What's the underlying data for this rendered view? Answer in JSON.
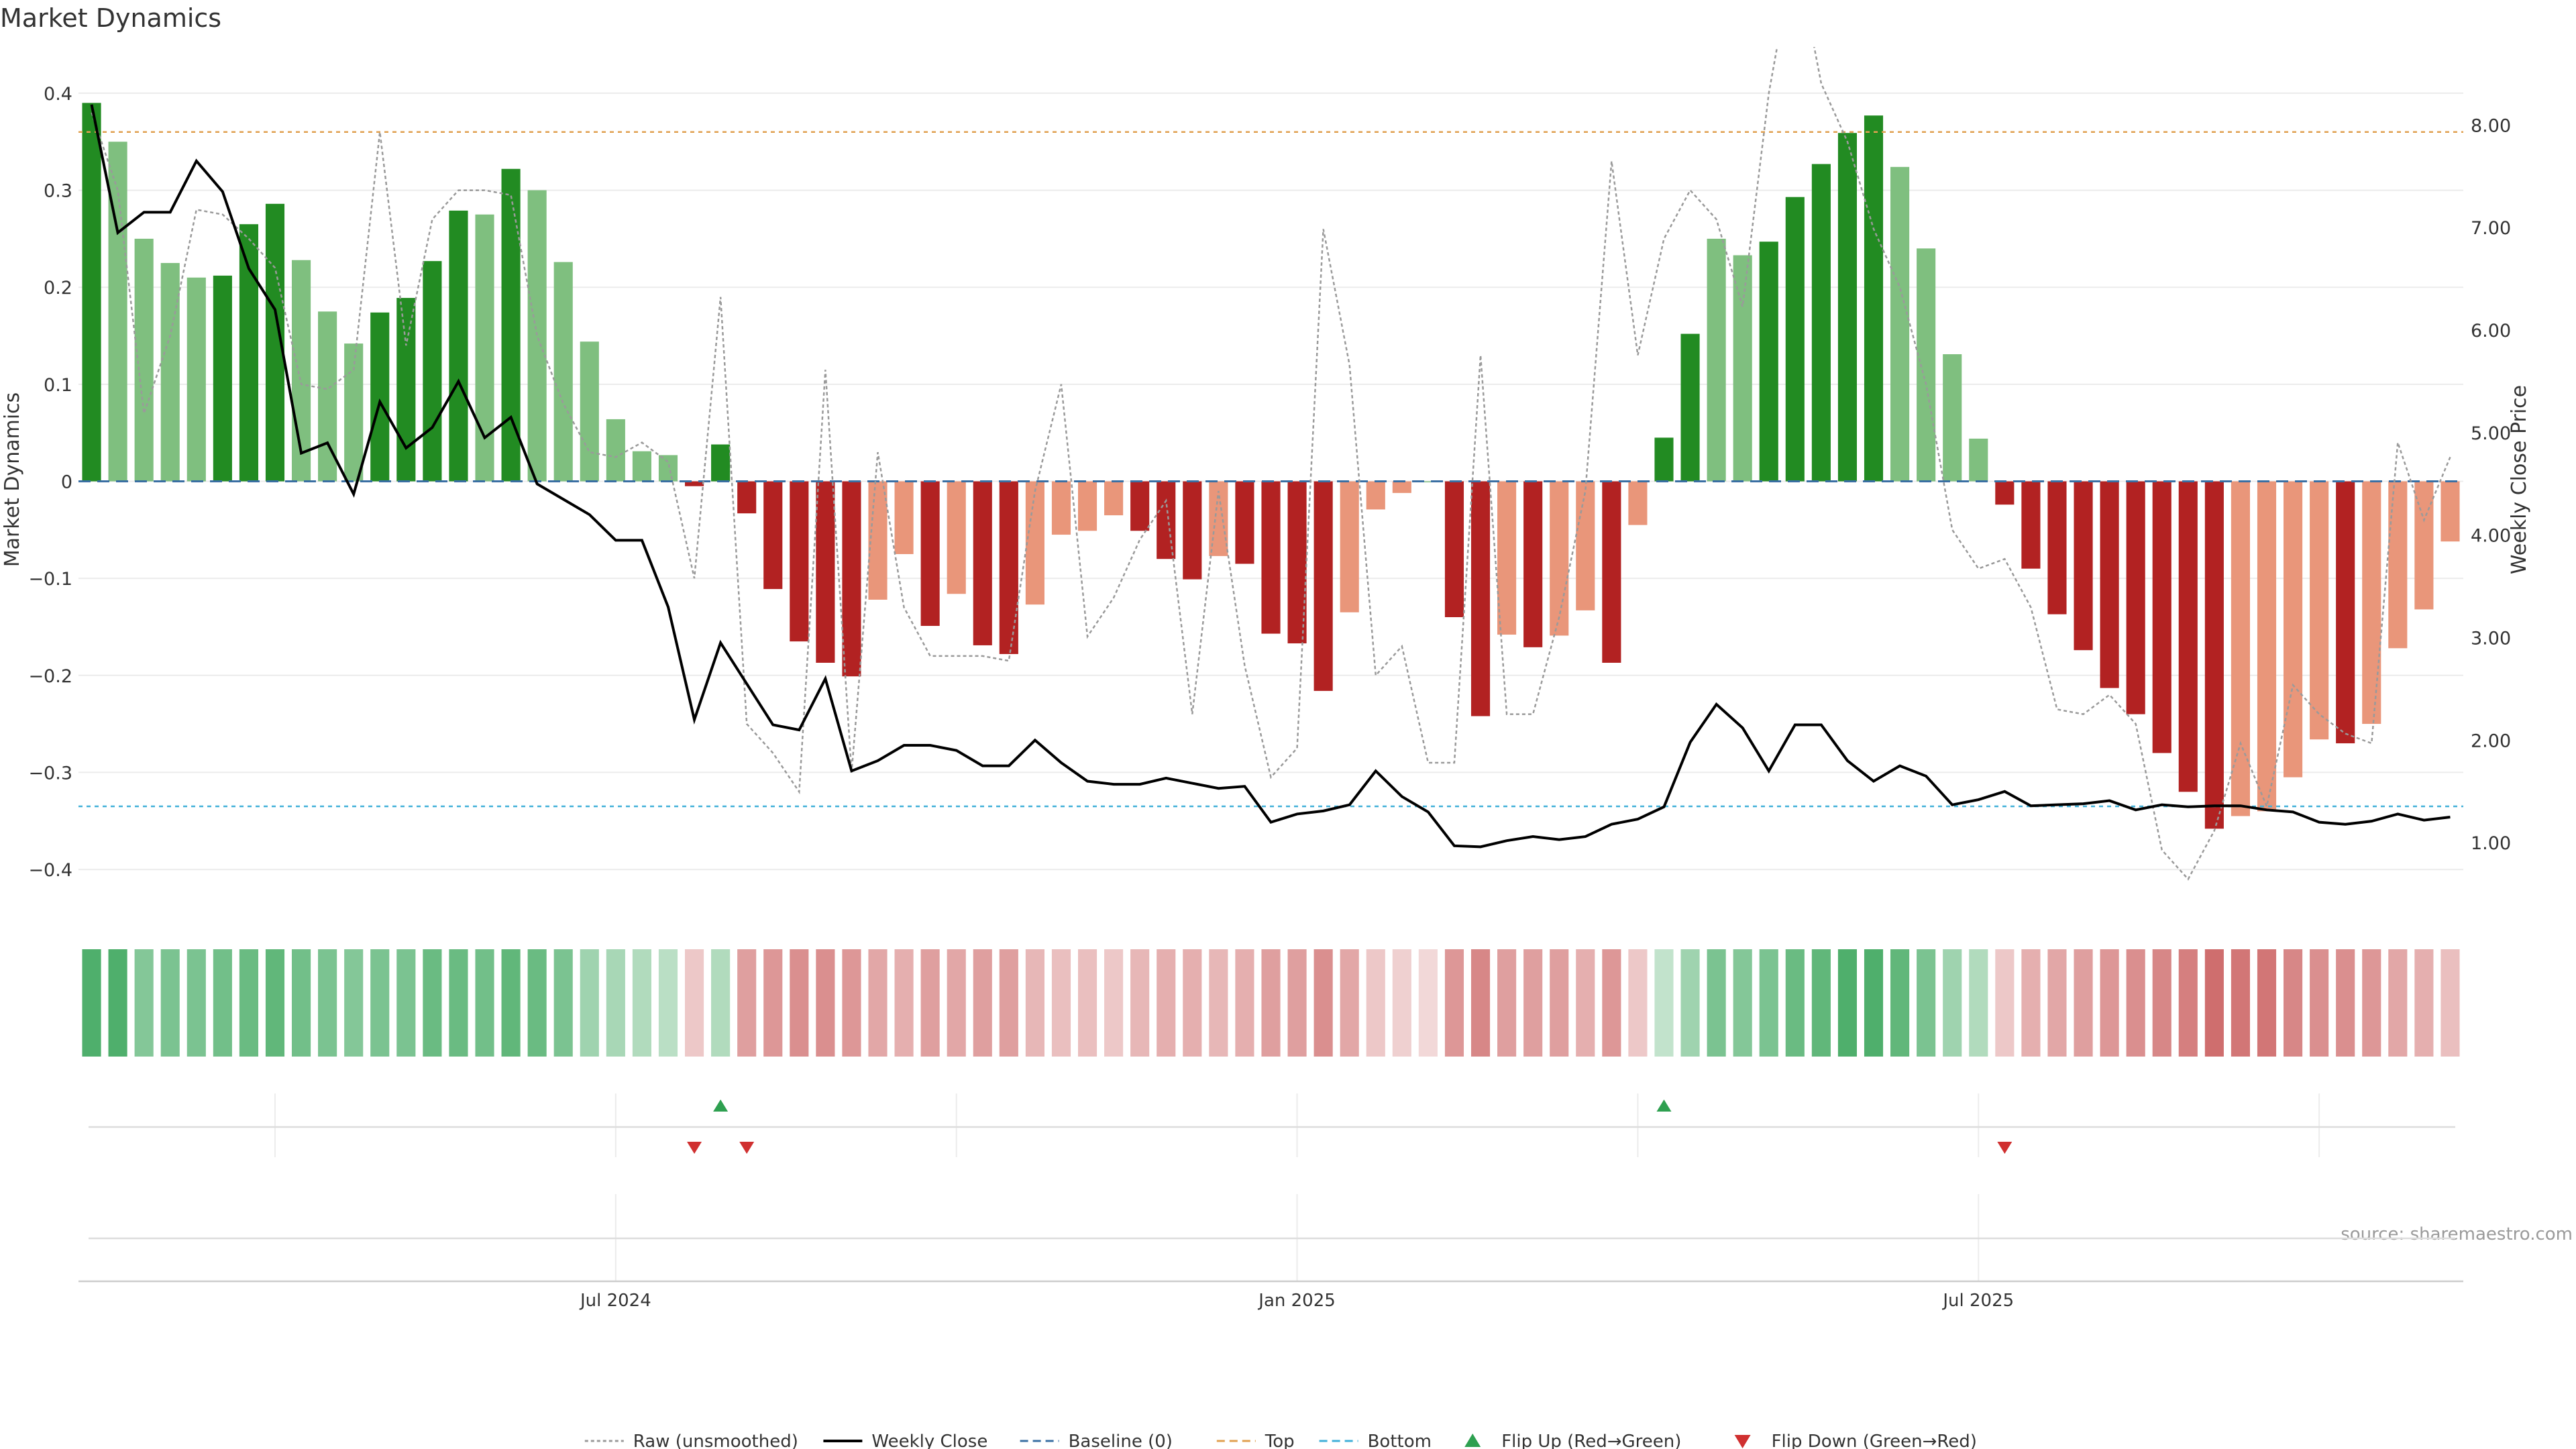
{
  "chart_data": {
    "type": "bar",
    "title": "Market Dynamics",
    "ylabel": "Market Dynamics",
    "y2label": "Weekly Close Price",
    "ylim": [
      -0.42,
      0.42
    ],
    "y2lim": [
      0.55,
      8.5
    ],
    "yticks": [
      0.4,
      0.3,
      0.2,
      0.1,
      0,
      -0.1,
      -0.2,
      -0.3,
      -0.4
    ],
    "yticks_labels": [
      "0.4",
      "0.3",
      "0.2",
      "0.1",
      "0",
      "−0.1",
      "−0.2",
      "−0.3",
      "−0.4"
    ],
    "y2ticks": [
      8.0,
      7.0,
      6.0,
      5.0,
      4.0,
      3.0,
      2.0,
      1.0
    ],
    "y2ticks_labels": [
      "8.00",
      "7.00",
      "6.00",
      "5.00",
      "4.00",
      "3.00",
      "2.00",
      "1.00"
    ],
    "x_tick_labels": [
      {
        "week": 20.5,
        "label": "Jul 2024"
      },
      {
        "week": 46.5,
        "label": "Jan 2025"
      },
      {
        "week": 72.5,
        "label": "Jul 2025"
      }
    ],
    "x_grid_weeks": [
      7.5,
      20.5,
      33.5,
      46.5,
      59.5,
      72.5,
      85.5
    ],
    "top_line": 0.36,
    "bottom_line": -0.335,
    "baseline": 0,
    "series": [
      {
        "name": "Market Dynamics (smoothed)",
        "values": [
          0.39,
          0.35,
          0.25,
          0.225,
          0.21,
          0.212,
          0.265,
          0.286,
          0.228,
          0.175,
          0.142,
          0.174,
          0.189,
          0.227,
          0.279,
          0.275,
          0.322,
          0.3,
          0.226,
          0.144,
          0.064,
          0.031,
          0.027,
          -0.005,
          0.038,
          -0.033,
          -0.111,
          -0.165,
          -0.187,
          -0.201,
          -0.122,
          -0.075,
          -0.149,
          -0.116,
          -0.169,
          -0.178,
          -0.127,
          -0.055,
          -0.051,
          -0.035,
          -0.051,
          -0.08,
          -0.101,
          -0.077,
          -0.085,
          -0.157,
          -0.167,
          -0.216,
          -0.135,
          -0.029,
          -0.012,
          0,
          -0.14,
          -0.242,
          -0.158,
          -0.171,
          -0.159,
          -0.133,
          -0.187,
          -0.045,
          0.045,
          0.152,
          0.25,
          0.233,
          0.247,
          0.293,
          0.327,
          0.359,
          0.377,
          0.324,
          0.24,
          0.131,
          0.044,
          -0.024,
          -0.09,
          -0.137,
          -0.174,
          -0.213,
          -0.24,
          -0.28,
          -0.32,
          -0.358,
          -0.345,
          -0.34,
          -0.305,
          -0.266,
          -0.27,
          -0.25,
          -0.172,
          -0.132,
          -0.062
        ]
      },
      {
        "name": "Strength",
        "values": [
          1,
          0,
          0,
          0,
          0,
          1,
          1,
          1,
          0,
          0,
          0,
          1,
          1,
          1,
          1,
          0,
          1,
          0,
          0,
          0,
          0,
          0,
          0,
          1,
          1,
          1,
          1,
          1,
          1,
          1,
          0,
          0,
          1,
          0,
          1,
          1,
          0,
          0,
          0,
          0,
          1,
          1,
          1,
          0,
          1,
          1,
          1,
          1,
          0,
          0,
          0,
          0,
          1,
          1,
          0,
          1,
          0,
          0,
          1,
          0,
          1,
          1,
          0,
          0,
          1,
          1,
          1,
          1,
          1,
          0,
          0,
          0,
          0,
          1,
          1,
          1,
          1,
          1,
          1,
          1,
          1,
          1,
          0,
          0,
          0,
          0,
          1,
          0,
          0,
          0,
          0
        ]
      },
      {
        "name": "Raw (unsmoothed)",
        "values": [
          0.38,
          0.3,
          0.07,
          0.15,
          0.28,
          0.275,
          0.25,
          0.22,
          0.1,
          0.095,
          0.115,
          0.36,
          0.14,
          0.27,
          0.3,
          0.3,
          0.295,
          0.15,
          0.08,
          0.03,
          0.025,
          0.04,
          0.02,
          -0.1,
          0.19,
          -0.25,
          -0.28,
          -0.32,
          0.115,
          -0.3,
          0.03,
          -0.13,
          -0.18,
          -0.18,
          -0.18,
          -0.185,
          -0.01,
          0.1,
          -0.16,
          -0.12,
          -0.06,
          -0.02,
          -0.24,
          -0.01,
          -0.19,
          -0.305,
          -0.275,
          0.26,
          0.12,
          -0.2,
          -0.17,
          -0.29,
          -0.29,
          0.13,
          -0.24,
          -0.24,
          -0.14,
          -0.01,
          0.33,
          0.13,
          0.25,
          0.3,
          0.27,
          0.18,
          0.4,
          0.55,
          0.41,
          0.35,
          0.26,
          0.2,
          0.1,
          -0.05,
          -0.09,
          -0.08,
          -0.13,
          -0.235,
          -0.24,
          -0.22,
          -0.25,
          -0.38,
          -0.41,
          -0.36,
          -0.27,
          -0.335,
          -0.21,
          -0.24,
          -0.26,
          -0.27,
          0.04,
          -0.04,
          0.025
        ]
      },
      {
        "name": "Weekly Close",
        "values": [
          8.2,
          6.95,
          7.15,
          7.15,
          7.65,
          7.35,
          6.6,
          6.2,
          4.8,
          4.9,
          4.4,
          5.3,
          4.85,
          5.05,
          5.5,
          4.95,
          5.15,
          4.5,
          4.35,
          4.2,
          3.95,
          3.95,
          3.3,
          2.2,
          2.95,
          2.55,
          2.15,
          2.1,
          2.6,
          1.7,
          1.8,
          1.95,
          1.95,
          1.9,
          1.75,
          1.75,
          2.0,
          1.78,
          1.6,
          1.57,
          1.57,
          1.63,
          1.58,
          1.53,
          1.55,
          1.2,
          1.28,
          1.31,
          1.37,
          1.7,
          1.45,
          1.3,
          0.97,
          0.96,
          1.02,
          1.06,
          1.03,
          1.06,
          1.18,
          1.23,
          1.35,
          1.98,
          2.35,
          2.12,
          1.7,
          2.15,
          2.15,
          1.8,
          1.6,
          1.75,
          1.65,
          1.37,
          1.42,
          1.5,
          1.36,
          1.37,
          1.38,
          1.41,
          1.32,
          1.37,
          1.35,
          1.36,
          1.36,
          1.32,
          1.3,
          1.2,
          1.18,
          1.21,
          1.28,
          1.22,
          1.25
        ]
      }
    ],
    "heat_strip": {
      "description": "colour-coded weekly regime strip, 0..1 intensity, sign by regime",
      "values": [
        0.85,
        0.85,
        0.55,
        0.6,
        0.6,
        0.65,
        0.7,
        0.75,
        0.65,
        0.6,
        0.55,
        0.6,
        0.6,
        0.7,
        0.7,
        0.65,
        0.75,
        0.7,
        0.6,
        0.4,
        0.35,
        0.3,
        0.25,
        -0.2,
        0.3,
        -0.45,
        -0.5,
        -0.55,
        -0.55,
        -0.5,
        -0.4,
        -0.35,
        -0.45,
        -0.4,
        -0.45,
        -0.45,
        -0.3,
        -0.25,
        -0.25,
        -0.2,
        -0.3,
        -0.35,
        -0.35,
        -0.3,
        -0.35,
        -0.45,
        -0.45,
        -0.55,
        -0.4,
        -0.2,
        -0.15,
        -0.1,
        -0.5,
        -0.6,
        -0.45,
        -0.45,
        -0.45,
        -0.35,
        -0.5,
        -0.2,
        0.2,
        0.4,
        0.6,
        0.55,
        0.6,
        0.7,
        0.75,
        0.85,
        0.85,
        0.75,
        0.6,
        0.4,
        0.3,
        -0.2,
        -0.35,
        -0.4,
        -0.45,
        -0.5,
        -0.55,
        -0.6,
        -0.65,
        -0.75,
        -0.7,
        -0.7,
        -0.6,
        -0.55,
        -0.55,
        -0.5,
        -0.4,
        -0.35,
        -0.25
      ]
    },
    "flips": {
      "up_weeks": [
        24,
        60
      ],
      "down_weeks": [
        23,
        25,
        73
      ]
    },
    "source": "source: sharemaestro.com",
    "legend": {
      "position": "bottom-center",
      "entries": [
        {
          "label": "Raw (unsmoothed)",
          "kind": "dotted-line",
          "color": "#9a9a9a"
        },
        {
          "label": "Weekly Close",
          "kind": "line",
          "color": "#000000"
        },
        {
          "label": "Baseline (0)",
          "kind": "dashed-line",
          "color": "#3a6fa3"
        },
        {
          "label": "Top",
          "kind": "dashed-line",
          "color": "#e0a050"
        },
        {
          "label": "Bottom",
          "kind": "dashed-line",
          "color": "#40b0d8"
        },
        {
          "label": "Flip Up (Red→Green)",
          "kind": "up-triangle",
          "color": "#2ea050"
        },
        {
          "label": "Flip Down (Green→Red)",
          "kind": "down-triangle",
          "color": "#d03030"
        }
      ]
    },
    "colors": {
      "green_strong": "#228B22",
      "green_light": "#7fbf7f",
      "red_strong": "#b22222",
      "red_light": "#e9967a",
      "raw": "#9a9a9a",
      "close": "#000000",
      "baseline": "#3a6fa3",
      "top": "#e0a050",
      "bottom": "#40b0d8",
      "flip_up": "#2ea050",
      "flip_down": "#d03030",
      "grid": "#ececec",
      "text": "#333333"
    }
  }
}
